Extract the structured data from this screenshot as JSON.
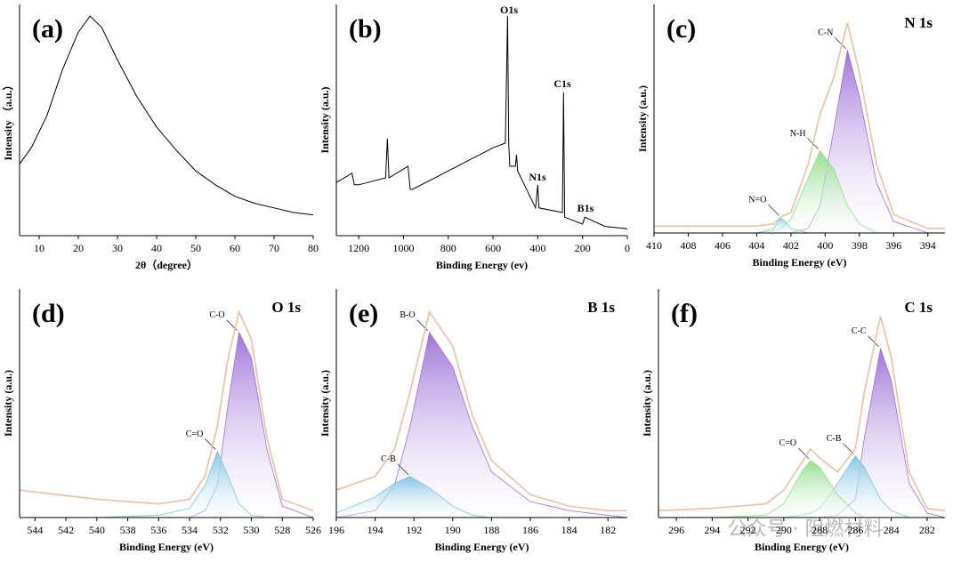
{
  "chart_data": [
    {
      "type": "line",
      "panel_label": "(a)",
      "x_label": "2θ（degree）",
      "y_label": "Intensity （a.u.）",
      "xlim": [
        5,
        80
      ],
      "xticks": [
        10,
        20,
        30,
        40,
        50,
        60,
        70,
        80
      ],
      "ylim": [
        0,
        100
      ],
      "series": [
        {
          "color": "#000000",
          "fill": false,
          "x": [
            5,
            8,
            12,
            16,
            20,
            23,
            26,
            30,
            35,
            40,
            45,
            50,
            55,
            60,
            65,
            70,
            75,
            80
          ],
          "values": [
            31,
            38,
            52,
            72,
            88,
            95,
            90,
            76,
            60,
            47,
            37,
            28,
            22,
            17,
            14,
            12,
            10,
            9
          ]
        }
      ]
    },
    {
      "type": "line",
      "panel_label": "(b)",
      "x_label": "Binding Energy (ev)",
      "y_label": "Intensity (a.u.)",
      "xlim": [
        1300,
        0
      ],
      "xticks": [
        1200,
        1000,
        800,
        600,
        400,
        200,
        0
      ],
      "ylim": [
        0,
        100
      ],
      "peak_labels": [
        "O1s",
        "C1s",
        "N1s",
        "B1s"
      ],
      "series": [
        {
          "color": "#000000",
          "fill": false,
          "x": [
            1300,
            1230,
            1220,
            1200,
            1080,
            1072,
            1065,
            980,
            970,
            960,
            800,
            600,
            545,
            535,
            530,
            525,
            500,
            495,
            490,
            410,
            400,
            395,
            290,
            285,
            280,
            200,
            190,
            100,
            0
          ],
          "values": [
            23,
            27,
            22,
            22,
            25,
            42,
            25,
            30,
            20,
            20,
            28,
            38,
            40,
            95,
            40,
            30,
            30,
            35,
            28,
            12,
            22,
            12,
            10,
            62,
            8,
            5,
            8,
            4,
            3
          ]
        }
      ]
    },
    {
      "type": "line",
      "panel_label": "(c)",
      "title": "N 1s",
      "x_label": "Binding Energy (eV)",
      "y_label": "Intensity (a.u.)",
      "xlim": [
        410,
        393
      ],
      "xticks": [
        410,
        408,
        406,
        404,
        402,
        400,
        398,
        396,
        394
      ],
      "ylim": [
        0,
        100
      ],
      "series": [
        {
          "color": "#e8c0a8",
          "fill": false,
          "x": [
            410,
            406,
            404,
            403,
            402.6,
            402,
            401,
            400.3,
            399.5,
            398.7,
            398,
            397,
            396,
            394,
            393
          ],
          "values": [
            3,
            3,
            3,
            4,
            7,
            9,
            30,
            52,
            68,
            92,
            70,
            30,
            8,
            2,
            2
          ]
        },
        {
          "name": "C-N",
          "color": "#9b6fd6",
          "fill": true,
          "x": [
            410,
            406,
            404,
            403,
            402.6,
            402,
            401,
            400.3,
            399.5,
            398.7,
            398,
            397,
            396,
            394,
            393
          ],
          "values": [
            0,
            0,
            0,
            0,
            0,
            0,
            2,
            12,
            45,
            80,
            60,
            22,
            5,
            0,
            0
          ]
        },
        {
          "name": "N-H",
          "color": "#8edb88",
          "fill": true,
          "x": [
            410,
            406,
            404,
            403,
            402.6,
            402,
            401,
            400.3,
            399.5,
            398.7,
            398,
            397,
            396,
            394,
            393
          ],
          "values": [
            0,
            0,
            0,
            1,
            2,
            6,
            24,
            36,
            28,
            12,
            4,
            0,
            0,
            0,
            0
          ]
        },
        {
          "name": "N=O",
          "color": "#7ec4e0",
          "fill": true,
          "x": [
            410,
            406,
            404,
            403,
            402.6,
            402,
            401,
            400.3,
            399.5,
            398.7,
            398,
            397,
            396,
            394,
            393
          ],
          "values": [
            0,
            0,
            0,
            2,
            7,
            2,
            0,
            0,
            0,
            0,
            0,
            0,
            0,
            0,
            0
          ]
        }
      ]
    },
    {
      "type": "line",
      "panel_label": "(d)",
      "title": "O 1s",
      "x_label": "Binding Energy (eV)",
      "y_label": "Intensity (a.u.)",
      "xlim": [
        545,
        526
      ],
      "xticks": [
        544,
        542,
        540,
        538,
        536,
        534,
        532,
        530,
        528,
        526
      ],
      "ylim": [
        0,
        100
      ],
      "series": [
        {
          "color": "#e8c0a8",
          "fill": false,
          "x": [
            545,
            540,
            536,
            534,
            533,
            532.2,
            531.5,
            530.8,
            530,
            529,
            528,
            526
          ],
          "values": [
            12,
            8,
            6,
            8,
            18,
            40,
            70,
            90,
            78,
            35,
            8,
            3
          ]
        },
        {
          "name": "C-O",
          "color": "#9b6fd6",
          "fill": true,
          "x": [
            545,
            540,
            536,
            534,
            533,
            532.2,
            531.5,
            530.8,
            530,
            529,
            528,
            526
          ],
          "values": [
            0,
            0,
            0,
            0,
            3,
            14,
            50,
            81,
            70,
            30,
            5,
            0
          ]
        },
        {
          "name": "C=O",
          "color": "#7ec4e0",
          "fill": true,
          "x": [
            545,
            540,
            536,
            534,
            533,
            532.2,
            531.5,
            530.8,
            530,
            529,
            528,
            526
          ],
          "values": [
            0,
            0,
            1,
            4,
            14,
            29,
            18,
            6,
            1,
            0,
            0,
            0
          ]
        }
      ]
    },
    {
      "type": "line",
      "panel_label": "(e)",
      "title": "B 1s",
      "x_label": "Binding Energy (eV)",
      "y_label": "Intensity (a.u.)",
      "xlim": [
        196,
        181
      ],
      "xticks": [
        196,
        194,
        192,
        190,
        188,
        186,
        184,
        182
      ],
      "ylim": [
        0,
        100
      ],
      "series": [
        {
          "color": "#e8c0a8",
          "fill": false,
          "x": [
            196,
            194,
            193,
            192.2,
            191.2,
            190,
            189,
            188,
            186,
            184,
            182,
            181
          ],
          "values": [
            12,
            18,
            30,
            55,
            90,
            75,
            45,
            25,
            10,
            5,
            3,
            3
          ]
        },
        {
          "name": "B-O",
          "color": "#9b6fd6",
          "fill": true,
          "x": [
            196,
            194,
            193,
            192.2,
            191.2,
            190,
            189,
            188,
            186,
            184,
            182,
            181
          ],
          "values": [
            0,
            3,
            14,
            40,
            81,
            66,
            40,
            20,
            7,
            3,
            1,
            0
          ]
        },
        {
          "name": "C-B",
          "color": "#7ec4e0",
          "fill": true,
          "x": [
            196,
            194,
            193,
            192.2,
            191.2,
            190,
            189,
            188,
            186,
            184,
            182,
            181
          ],
          "values": [
            2,
            9,
            15,
            18,
            13,
            5,
            1,
            0,
            0,
            0,
            0,
            0
          ]
        }
      ]
    },
    {
      "type": "line",
      "panel_label": "(f)",
      "title": "C 1s",
      "x_label": "Binding Energy (eV)",
      "y_label": "Intensity (a.u.)",
      "xlim": [
        297,
        281
      ],
      "xticks": [
        296,
        294,
        292,
        290,
        288,
        286,
        284,
        282
      ],
      "ylim": [
        0,
        100
      ],
      "series": [
        {
          "color": "#e8c0a8",
          "fill": false,
          "x": [
            297,
            294,
            291,
            290,
            289,
            288.5,
            288,
            287,
            286,
            285.5,
            284.6,
            284,
            283,
            282,
            281
          ],
          "values": [
            3,
            4,
            6,
            12,
            24,
            30,
            26,
            20,
            30,
            55,
            88,
            70,
            20,
            4,
            3
          ]
        },
        {
          "name": "C-C",
          "color": "#9b6fd6",
          "fill": true,
          "x": [
            297,
            294,
            291,
            290,
            289,
            288.5,
            288,
            287,
            286,
            285.5,
            284.6,
            284,
            283,
            282,
            281
          ],
          "values": [
            0,
            0,
            0,
            0,
            0,
            0,
            0,
            1,
            8,
            35,
            74,
            60,
            15,
            2,
            0
          ]
        },
        {
          "name": "C-B",
          "color": "#7ec4e0",
          "fill": true,
          "x": [
            297,
            294,
            291,
            290,
            289,
            288.5,
            288,
            287,
            286,
            285.5,
            284.6,
            284,
            283,
            282,
            281
          ],
          "values": [
            0,
            0,
            0,
            0,
            1,
            2,
            4,
            15,
            27,
            22,
            8,
            3,
            0,
            0,
            0
          ]
        },
        {
          "name": "C=O",
          "color": "#8edb88",
          "fill": true,
          "x": [
            297,
            294,
            291,
            290,
            289,
            288.5,
            288,
            287,
            286,
            285.5,
            284.6,
            284,
            283,
            282,
            281
          ],
          "values": [
            0,
            0,
            1,
            6,
            20,
            25,
            22,
            10,
            2,
            0,
            0,
            0,
            0,
            0,
            0
          ]
        }
      ]
    }
  ],
  "watermark": "公众号 · 阻燃材料"
}
